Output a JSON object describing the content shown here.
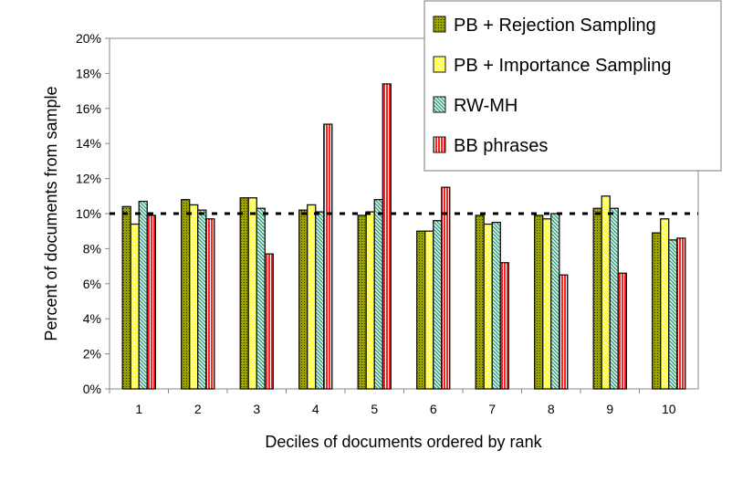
{
  "chart_data": {
    "type": "bar",
    "title": "",
    "xlabel": "Deciles of documents ordered by rank",
    "ylabel": "Percent of documents from sample",
    "ylim": [
      0,
      20
    ],
    "yticks": [
      "0%",
      "2%",
      "4%",
      "6%",
      "8%",
      "10%",
      "12%",
      "14%",
      "16%",
      "18%",
      "20%"
    ],
    "categories": [
      "1",
      "2",
      "3",
      "4",
      "5",
      "6",
      "7",
      "8",
      "9",
      "10"
    ],
    "reference_line": 10,
    "legend_position": "top-right",
    "series": [
      {
        "name": "PB + Rejection Sampling",
        "color": "#808000",
        "values": [
          10.4,
          10.8,
          10.9,
          10.2,
          9.9,
          9.0,
          9.9,
          9.9,
          10.3,
          8.9
        ]
      },
      {
        "name": "PB + Importance Sampling",
        "color": "#ffff80",
        "values": [
          9.4,
          10.5,
          10.9,
          10.5,
          10.1,
          9.0,
          9.4,
          9.7,
          11.0,
          9.7
        ]
      },
      {
        "name": "RW-MH",
        "color": "#66ccaa",
        "values": [
          10.7,
          10.2,
          10.3,
          10.1,
          10.8,
          9.6,
          9.5,
          10.0,
          10.3,
          8.5
        ]
      },
      {
        "name": "BB phrases",
        "color": "#ff2020",
        "values": [
          9.9,
          9.7,
          7.7,
          15.1,
          17.4,
          11.5,
          7.2,
          6.5,
          6.6,
          8.6
        ]
      }
    ]
  }
}
